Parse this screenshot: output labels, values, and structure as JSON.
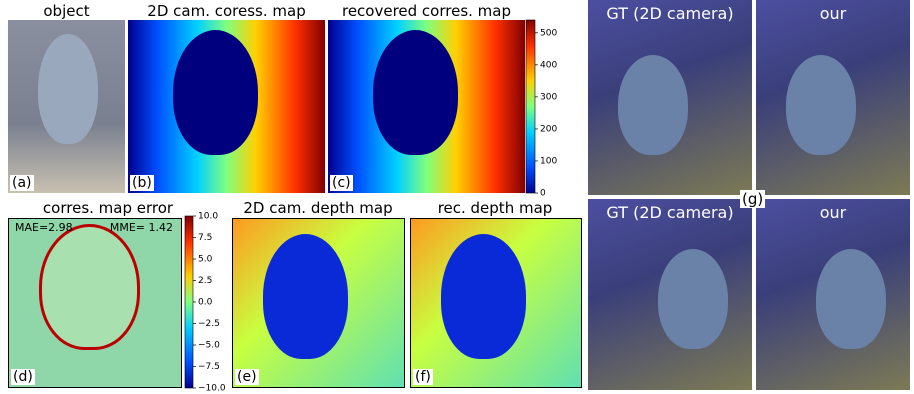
{
  "panels": [
    {
      "title": "object",
      "label": "(a)"
    },
    {
      "title": "2D cam. coress. map",
      "label": "(b)"
    },
    {
      "title": "recovered corres. map",
      "label": "(c)"
    },
    {
      "title": "corres. map error",
      "label": "(d)"
    },
    {
      "title": "2D cam. depth map",
      "label": "(e)"
    },
    {
      "title": "rec. depth map",
      "label": "(f)"
    }
  ],
  "error_stats": [
    "MAE=2.98",
    "MME= 1.42"
  ],
  "colorbar_top": {
    "ylim": [
      0,
      540
    ],
    "yticks": [
      0,
      100,
      200,
      300,
      400,
      500
    ]
  },
  "colorbar_bottom": {
    "ylim": [
      -10,
      10
    ],
    "yticks": [
      {
        "value": 10,
        "label": "10.0"
      },
      {
        "value": 7.5,
        "label": "7.5"
      },
      {
        "value": 5,
        "label": "5.0"
      },
      {
        "value": 2.5,
        "label": "2.5"
      },
      {
        "value": 0,
        "label": "0.0"
      },
      {
        "value": -2.5,
        "label": "−2.5"
      },
      {
        "value": -5,
        "label": "−5.0"
      },
      {
        "value": -7.5,
        "label": "−7.5"
      },
      {
        "value": -10,
        "label": "−10.0"
      }
    ]
  },
  "views": {
    "titles": [
      "GT (2D camera)",
      "our",
      "GT (2D camera)",
      "our"
    ],
    "label": "(g)"
  }
}
